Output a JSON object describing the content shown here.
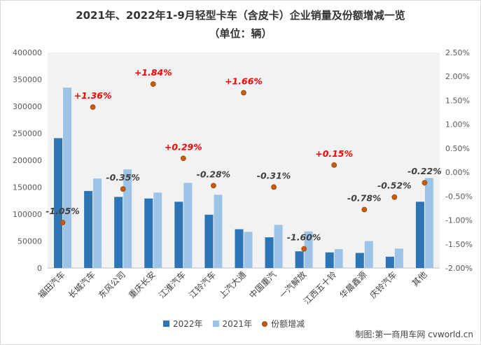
{
  "chart_data": {
    "type": "bar+scatter",
    "title": "2021年、2022年1-9月轻型卡车（含皮卡）企业销量及份额增减一览",
    "subtitle": "（单位：辆）",
    "categories": [
      "福田汽车",
      "长城汽车",
      "东风公司",
      "重庆长安",
      "江淮汽车",
      "江铃汽车",
      "上汽大通",
      "中国重汽",
      "一汽解放",
      "江西五十铃",
      "华晨鑫源",
      "庆铃汽车",
      "其他"
    ],
    "series": [
      {
        "name": "2022年",
        "type": "bar",
        "axis": "left",
        "color": "#2e75b6",
        "values": [
          241000,
          143000,
          132000,
          129000,
          123000,
          99000,
          72000,
          57000,
          31000,
          29000,
          28000,
          21000,
          123000
        ]
      },
      {
        "name": "2021年",
        "type": "bar",
        "axis": "left",
        "color": "#9dc3e6",
        "values": [
          335000,
          166000,
          183000,
          140000,
          158000,
          136000,
          67000,
          80000,
          68000,
          35000,
          50000,
          36000,
          167000
        ]
      },
      {
        "name": "份额增减",
        "type": "scatter",
        "axis": "right",
        "color": "#c55a11",
        "values": [
          -1.05,
          1.36,
          -0.35,
          1.84,
          0.29,
          -0.28,
          1.66,
          -0.31,
          -1.6,
          0.15,
          -0.78,
          -0.52,
          -0.22
        ],
        "labels": [
          "-1.05%",
          "+1.36%",
          "-0.35%",
          "+1.84%",
          "+0.29%",
          "-0.28%",
          "+1.66%",
          "-0.31%",
          "-1.60%",
          "+0.15%",
          "-0.78%",
          "-0.52%",
          "-0.22%"
        ]
      }
    ],
    "y_left": {
      "min": 0,
      "max": 400000,
      "step": 50000,
      "ticks": [
        "0",
        "50000",
        "100000",
        "150000",
        "200000",
        "250000",
        "300000",
        "350000",
        "400000"
      ]
    },
    "y_right": {
      "min": -2.0,
      "max": 2.5,
      "step": 0.5,
      "ticks": [
        "-2.00%",
        "-1.50%",
        "-1.00%",
        "-0.50%",
        "0.00%",
        "0.50%",
        "1.00%",
        "1.50%",
        "2.00%",
        "2.50%"
      ]
    },
    "grid": false,
    "legend_position": "bottom",
    "positive_label_color": "#ff0000",
    "negative_label_color": "#404040"
  },
  "source": "制图:第一商用车网 cvworld.cn"
}
